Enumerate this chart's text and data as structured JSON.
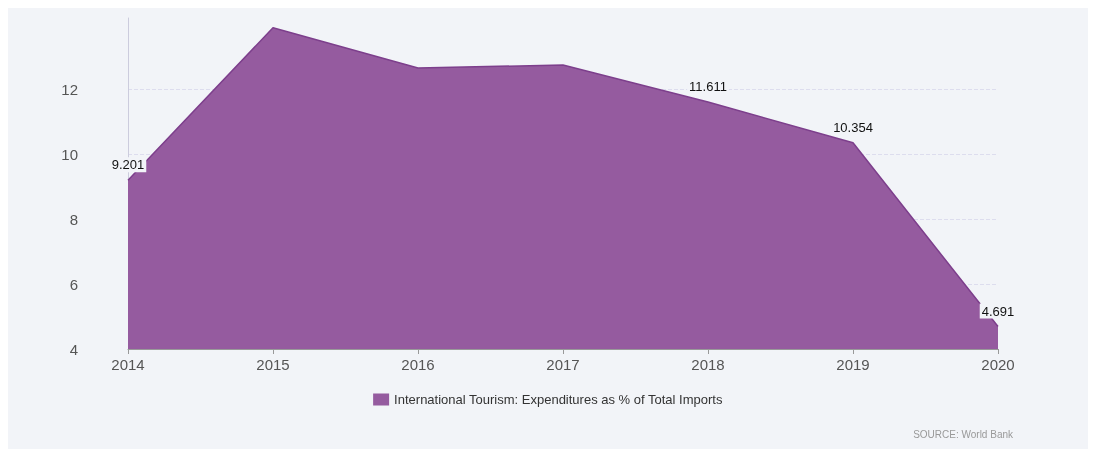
{
  "chart_data": {
    "type": "area",
    "x": [
      2014,
      2015,
      2016,
      2017,
      2018,
      2019,
      2020
    ],
    "series": [
      {
        "name": "International Tourism: Expenditures as % of Total Imports",
        "color": "#955b9f",
        "values": [
          9.201,
          13.9,
          12.66,
          12.75,
          11.611,
          10.354,
          4.691
        ],
        "value_labels": [
          "9.201",
          null,
          null,
          null,
          "11.611",
          "10.354",
          "4.691"
        ]
      }
    ],
    "xlim": [
      2014,
      2020
    ],
    "xticks": [
      2014,
      2015,
      2016,
      2017,
      2018,
      2019,
      2020
    ],
    "ylim": [
      4,
      14.2
    ],
    "yticks": [
      4,
      6,
      8,
      10,
      12
    ],
    "grid": "y",
    "legend": "bottom",
    "marker": "none",
    "annotations": [
      "SOURCE: World Bank"
    ]
  }
}
